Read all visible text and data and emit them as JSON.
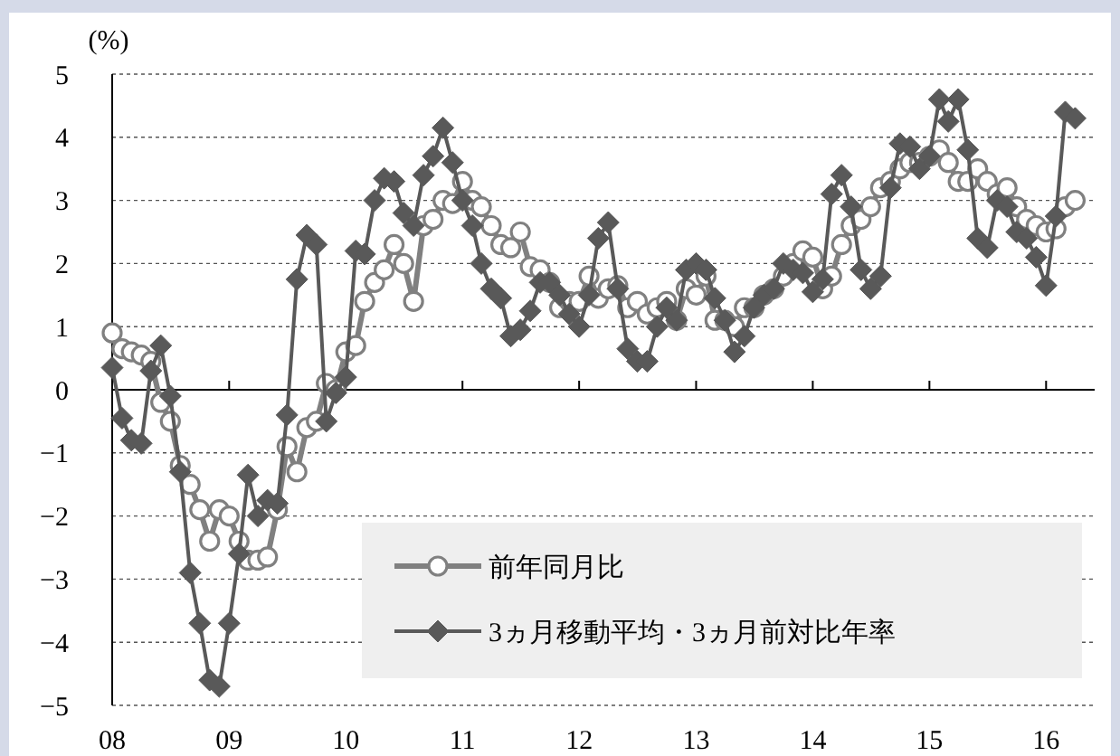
{
  "chart_data": {
    "type": "line",
    "ylabel": "(%)",
    "xlim": [
      "2008-01",
      "2016-06"
    ],
    "xticks": [
      {
        "value": "2008-01",
        "label": "08"
      },
      {
        "value": "2009-01",
        "label": "09"
      },
      {
        "value": "2010-01",
        "label": "10"
      },
      {
        "value": "2011-01",
        "label": "11"
      },
      {
        "value": "2012-01",
        "label": "12"
      },
      {
        "value": "2013-01",
        "label": "13"
      },
      {
        "value": "2014-01",
        "label": "14"
      },
      {
        "value": "2015-01",
        "label": "15"
      },
      {
        "value": "2016-01",
        "label": "16"
      }
    ],
    "x": [
      "2008-01",
      "2008-02",
      "2008-03",
      "2008-04",
      "2008-05",
      "2008-06",
      "2008-07",
      "2008-08",
      "2008-09",
      "2008-10",
      "2008-11",
      "2008-12",
      "2009-01",
      "2009-02",
      "2009-03",
      "2009-04",
      "2009-05",
      "2009-06",
      "2009-07",
      "2009-08",
      "2009-09",
      "2009-10",
      "2009-11",
      "2009-12",
      "2010-01",
      "2010-02",
      "2010-03",
      "2010-04",
      "2010-05",
      "2010-06",
      "2010-07",
      "2010-08",
      "2010-09",
      "2010-10",
      "2010-11",
      "2010-12",
      "2011-01",
      "2011-02",
      "2011-03",
      "2011-04",
      "2011-05",
      "2011-06",
      "2011-07",
      "2011-08",
      "2011-09",
      "2011-10",
      "2011-11",
      "2011-12",
      "2012-01",
      "2012-02",
      "2012-03",
      "2012-04",
      "2012-05",
      "2012-06",
      "2012-07",
      "2012-08",
      "2012-09",
      "2012-10",
      "2012-11",
      "2012-12",
      "2013-01",
      "2013-02",
      "2013-03",
      "2013-04",
      "2013-05",
      "2013-06",
      "2013-07",
      "2013-08",
      "2013-09",
      "2013-10",
      "2013-11",
      "2013-12",
      "2014-01",
      "2014-02",
      "2014-03",
      "2014-04",
      "2014-05",
      "2014-06",
      "2014-07",
      "2014-08",
      "2014-09",
      "2014-10",
      "2014-11",
      "2014-12",
      "2015-01",
      "2015-02",
      "2015-03",
      "2015-04",
      "2015-05",
      "2015-06",
      "2015-07",
      "2015-08",
      "2015-09",
      "2015-10",
      "2015-11",
      "2015-12",
      "2016-01",
      "2016-02",
      "2016-03",
      "2016-04"
    ],
    "ylim": [
      -5,
      5
    ],
    "yticks": [
      -5,
      -4,
      -3,
      -2,
      -1,
      0,
      1,
      2,
      3,
      4,
      5
    ],
    "grid": "y",
    "legend": "bottom right",
    "line_style": "solid",
    "series": [
      {
        "name": "前年同月比",
        "color": "#808080",
        "marker": "circle",
        "values": [
          0.9,
          0.65,
          0.6,
          0.55,
          0.45,
          -0.2,
          -0.5,
          -1.2,
          -1.5,
          -1.9,
          -2.4,
          -1.9,
          -2.0,
          -2.4,
          -2.7,
          -2.7,
          -2.65,
          -1.9,
          -0.9,
          -1.3,
          -0.6,
          -0.5,
          0.1,
          0.0,
          0.6,
          0.7,
          1.4,
          1.7,
          1.9,
          2.3,
          2.0,
          1.4,
          2.6,
          2.7,
          3.0,
          2.95,
          3.3,
          3.0,
          2.9,
          2.6,
          2.3,
          2.25,
          2.5,
          1.95,
          1.9,
          1.7,
          1.3,
          1.4,
          1.4,
          1.8,
          1.45,
          1.6,
          1.65,
          1.3,
          1.4,
          1.2,
          1.3,
          1.4,
          1.1,
          1.6,
          1.5,
          1.8,
          1.1,
          1.1,
          1.0,
          1.3,
          1.3,
          1.5,
          1.6,
          1.8,
          2.0,
          2.2,
          2.1,
          1.6,
          1.8,
          2.3,
          2.6,
          2.7,
          2.9,
          3.2,
          3.3,
          3.5,
          3.6,
          3.6,
          3.7,
          3.8,
          3.6,
          3.3,
          3.3,
          3.5,
          3.3,
          3.1,
          3.2,
          2.9,
          2.7,
          2.6,
          2.5,
          2.55,
          2.9,
          3.0
        ]
      },
      {
        "name": "3ヵ月移動平均・3ヵ月前対比年率",
        "color": "#595959",
        "marker": "diamond",
        "values": [
          0.35,
          -0.45,
          -0.8,
          -0.85,
          0.3,
          0.7,
          -0.1,
          -1.3,
          -2.9,
          -3.7,
          -4.6,
          -4.7,
          -3.7,
          -2.6,
          -1.35,
          -2.0,
          -1.75,
          -1.8,
          -0.4,
          1.75,
          2.45,
          2.3,
          -0.5,
          -0.05,
          0.2,
          2.2,
          2.15,
          3.0,
          3.35,
          3.3,
          2.8,
          2.6,
          3.4,
          3.7,
          4.15,
          3.6,
          3.0,
          2.6,
          2.0,
          1.6,
          1.45,
          0.85,
          0.95,
          1.25,
          1.7,
          1.7,
          1.5,
          1.2,
          1.0,
          1.5,
          2.4,
          2.65,
          1.6,
          0.65,
          0.45,
          0.45,
          1.0,
          1.3,
          1.1,
          1.9,
          2.0,
          1.9,
          1.45,
          1.1,
          0.6,
          0.85,
          1.3,
          1.5,
          1.6,
          2.0,
          1.9,
          1.85,
          1.55,
          1.75,
          3.1,
          3.4,
          2.9,
          1.9,
          1.6,
          1.8,
          3.2,
          3.9,
          3.85,
          3.5,
          3.7,
          4.6,
          4.25,
          4.6,
          3.8,
          2.4,
          2.25,
          3.0,
          2.9,
          2.5,
          2.4,
          2.1,
          1.65,
          2.75,
          4.4,
          4.3
        ]
      }
    ]
  }
}
